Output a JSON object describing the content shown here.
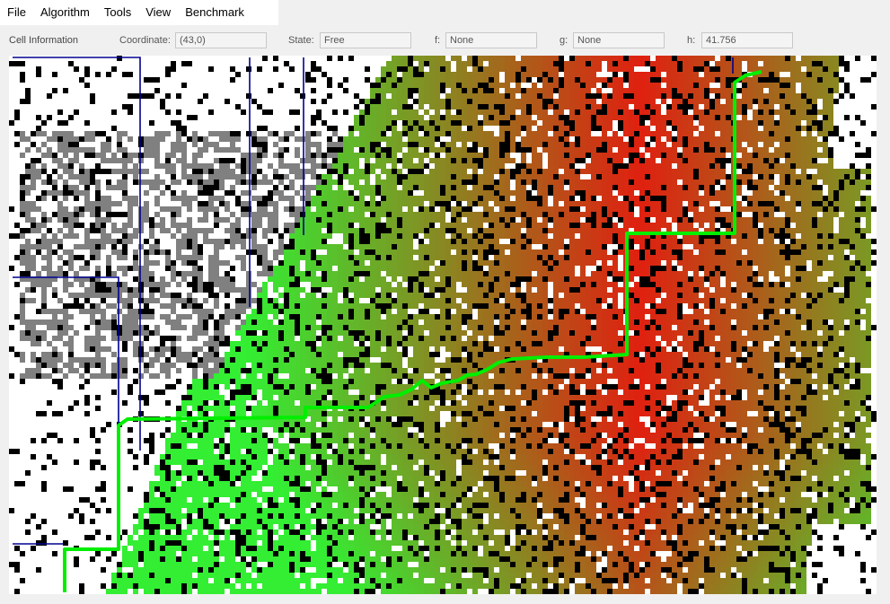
{
  "menubar": {
    "items": [
      {
        "label": "File"
      },
      {
        "label": "Algorithm"
      },
      {
        "label": "Tools"
      },
      {
        "label": "View"
      },
      {
        "label": "Benchmark"
      }
    ]
  },
  "cell_info": {
    "title": "Cell Information",
    "coordinate_label": "Coordinate:",
    "coordinate_value": "(43,0)",
    "state_label": "State:",
    "state_value": "Free",
    "f_label": "f:",
    "f_value": "None",
    "g_label": "g:",
    "g_value": "None",
    "h_label": "h:",
    "h_value": "41.756"
  },
  "grid": {
    "colors": {
      "free": "#ffffff",
      "obstacle": "#000000",
      "explored_gray": "#808080",
      "path": "#00ff00",
      "near_start": "#33ee33",
      "far_from_start": "#e02010",
      "subgoal_line": "#000090"
    }
  }
}
